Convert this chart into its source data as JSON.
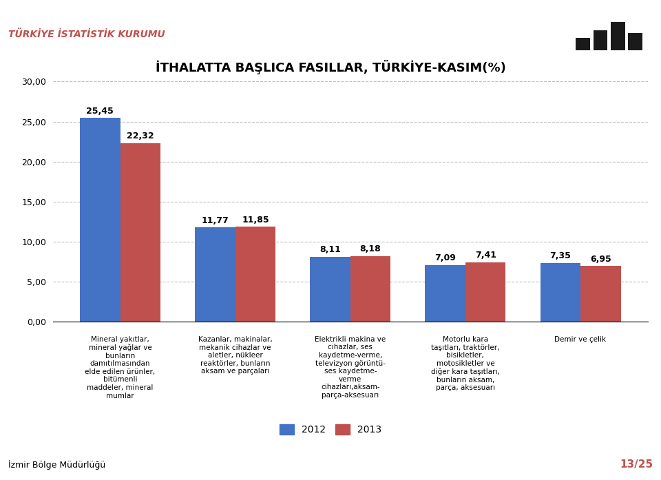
{
  "title": "İTHALATTA BAŞLICA FASILLAR, TÜRKİYE-KASIM(%)",
  "header_text": "TÜRKİYE İSTATİSTİK KURUMU",
  "footer_text": "İzmir Bölge Müdürlüğü",
  "page_num": "13/25",
  "categories": [
    "Mineral yakıtlar,\nmineral yağlar ve\nbunların\ndamıtılmasından\nelde edilen ürünler,\nbitümenli\nmaddeler, mineral\nmumlar",
    "Kazanlar, makinalar,\nmekanik cihazlar ve\naletler, nükleer\nreaktörler, bunların\naksam ve parçaları",
    "Elektrikli makina ve\ncihazlar, ses\nkaydetme-verme,\ntelevizyon görüntü-\nses kaydetme-\nverme\ncihazları,aksam-\nparça-aksesuarı",
    "Motorlu kara\ntaşıtları, traktörler,\nbisikletler,\nmotosikletler ve\ndiğer kara taşıtları,\nbunların aksam,\nparça, aksesuarı",
    "Demir ve çelik"
  ],
  "values_2012": [
    25.45,
    11.77,
    8.11,
    7.09,
    7.35
  ],
  "values_2013": [
    22.32,
    11.85,
    8.18,
    7.41,
    6.95
  ],
  "color_2012": "#4472C4",
  "color_2013": "#C0504D",
  "ylim": [
    0,
    30
  ],
  "yticks": [
    0,
    5,
    10,
    15,
    20,
    25,
    30
  ],
  "ytick_labels": [
    "0,00",
    "5,00",
    "10,00",
    "15,00",
    "20,00",
    "25,00",
    "30,00"
  ],
  "legend_2012": "2012",
  "legend_2013": "2013",
  "header_color": "#C0504D",
  "title_color": "#000000",
  "bar_width": 0.35,
  "background_color": "#FFFFFF",
  "grid_color": "#BFBFBF",
  "accent_color": "#C0504D"
}
